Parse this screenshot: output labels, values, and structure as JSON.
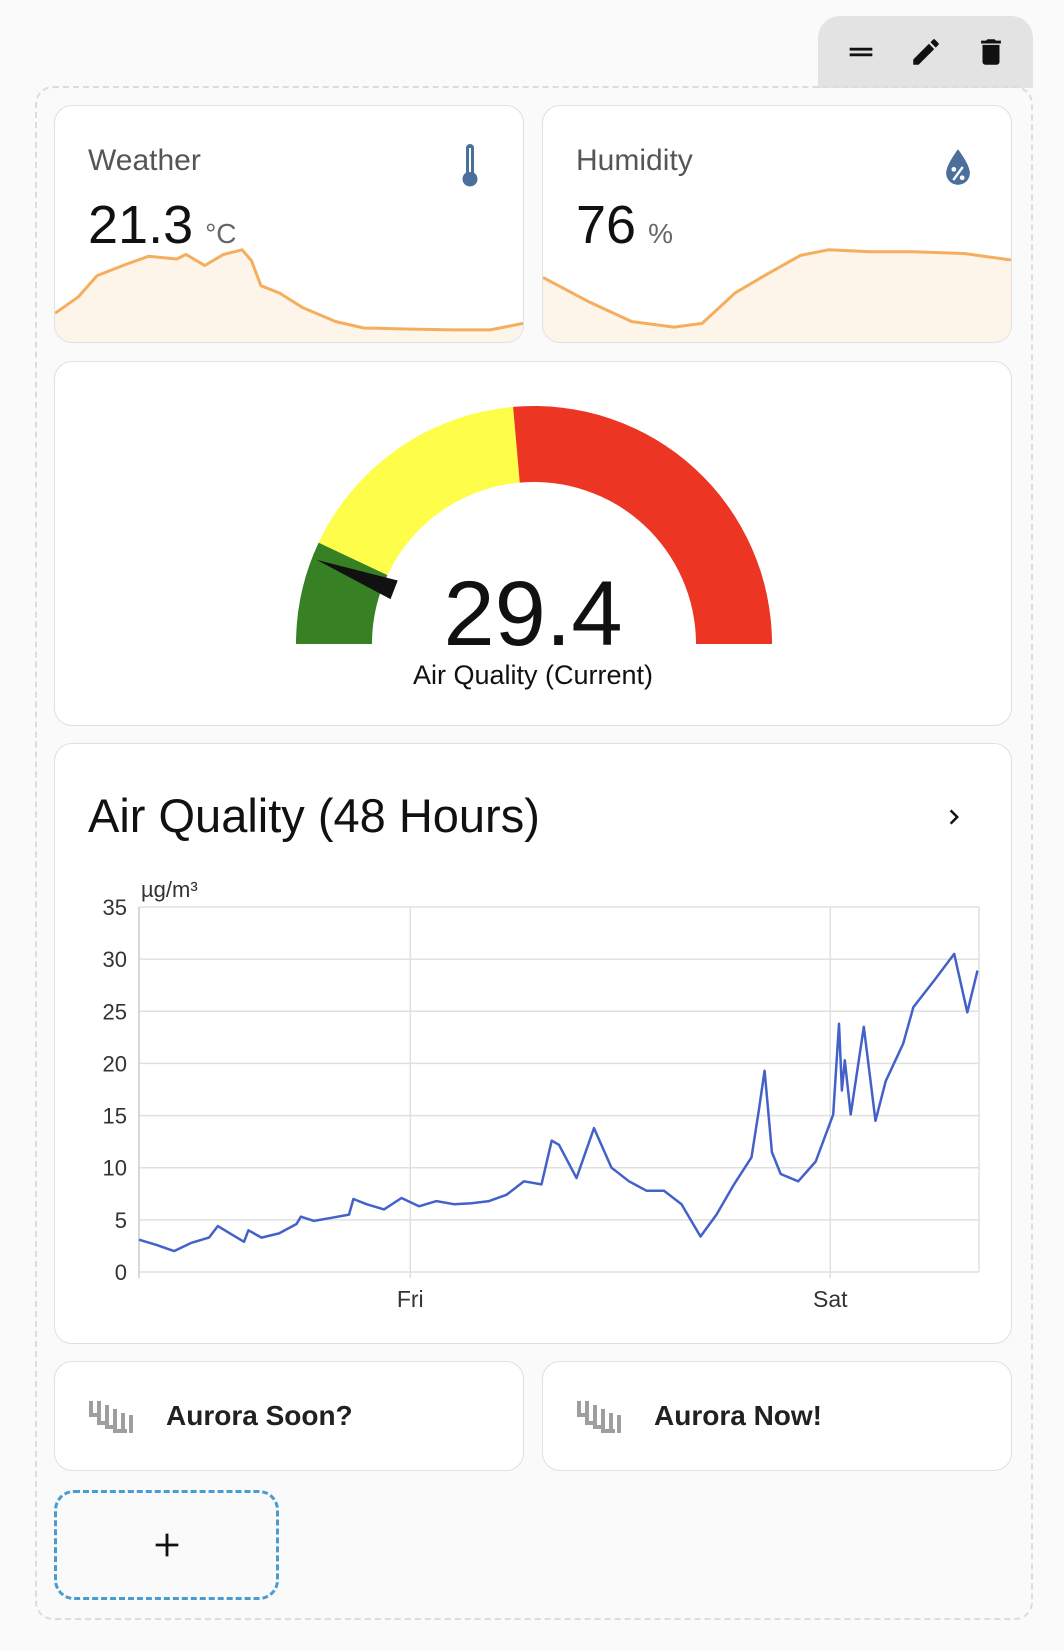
{
  "toolbar": {
    "icons": [
      "drag-handle-icon",
      "pencil-icon",
      "trash-icon"
    ]
  },
  "weather": {
    "title": "Weather",
    "value": "21.3",
    "unit": "°C",
    "icon": "thermometer-icon",
    "icon_color": "#4a6f9a",
    "history_level_pct": [
      [
        0,
        29
      ],
      [
        0.05,
        47
      ],
      [
        0.09,
        70
      ],
      [
        0.15,
        82
      ],
      [
        0.2,
        91
      ],
      [
        0.26,
        88
      ],
      [
        0.28,
        93
      ],
      [
        0.32,
        81
      ],
      [
        0.36,
        93
      ],
      [
        0.4,
        98
      ],
      [
        0.42,
        86
      ],
      [
        0.44,
        59
      ],
      [
        0.48,
        51
      ],
      [
        0.53,
        35
      ],
      [
        0.6,
        20
      ],
      [
        0.66,
        13
      ],
      [
        0.75,
        12
      ],
      [
        0.85,
        11
      ],
      [
        0.93,
        11
      ],
      [
        1,
        18
      ]
    ]
  },
  "humidity": {
    "title": "Humidity",
    "value": "76",
    "unit": "%",
    "icon": "water-percent-icon",
    "icon_color": "#4a6f9a",
    "history_level_pct": [
      [
        0,
        68
      ],
      [
        0.1,
        41
      ],
      [
        0.19,
        20
      ],
      [
        0.28,
        14
      ],
      [
        0.34,
        18
      ],
      [
        0.41,
        51
      ],
      [
        0.48,
        72
      ],
      [
        0.55,
        92
      ],
      [
        0.61,
        98
      ],
      [
        0.7,
        96
      ],
      [
        0.79,
        96
      ],
      [
        0.9,
        94
      ],
      [
        1,
        87
      ]
    ]
  },
  "spark_colors": {
    "line": "#f4ae5e",
    "fill": "#fdf5ea"
  },
  "gauge": {
    "value": "29.4",
    "label": "Air Quality (Current)",
    "min": 0,
    "max": 250,
    "segments": [
      {
        "from": 0,
        "color": "#388024"
      },
      {
        "from": 35,
        "color": "#fdfd4a"
      },
      {
        "from": 118,
        "color": "#ec3523"
      }
    ]
  },
  "chart_card": {
    "title": "Air Quality (48 Hours)",
    "more_icon": "chevron-right-icon"
  },
  "chart_data": {
    "type": "line",
    "ylabel": "µg/m³",
    "ylim": [
      0,
      35
    ],
    "yticks": [
      "0",
      "5",
      "10",
      "15",
      "20",
      "25",
      "30",
      "35"
    ],
    "xlim": [
      "Thu 08:30",
      "Sat 08:30"
    ],
    "xticks": [
      {
        "at": "Fri 00:00",
        "label": "Fri"
      },
      {
        "at": "Sat 00:00",
        "label": "Sat"
      }
    ],
    "grid": true,
    "color": "#4361c9",
    "series": [
      {
        "points": [
          [
            "Thu 08:30",
            3.1
          ],
          [
            "Thu 09:30",
            2.6
          ],
          [
            "Thu 10:30",
            2.0
          ],
          [
            "Thu 11:30",
            2.8
          ],
          [
            "Thu 12:30",
            3.3
          ],
          [
            "Thu 13:00",
            4.4
          ],
          [
            "Thu 13:30",
            3.9
          ],
          [
            "Thu 14:30",
            2.9
          ],
          [
            "Thu 14:45",
            4.0
          ],
          [
            "Thu 15:30",
            3.3
          ],
          [
            "Thu 16:30",
            3.7
          ],
          [
            "Thu 17:30",
            4.6
          ],
          [
            "Thu 17:45",
            5.3
          ],
          [
            "Thu 18:30",
            4.9
          ],
          [
            "Thu 19:30",
            5.2
          ],
          [
            "Thu 20:30",
            5.5
          ],
          [
            "Thu 20:45",
            7.0
          ],
          [
            "Thu 21:30",
            6.5
          ],
          [
            "Thu 22:30",
            6.0
          ],
          [
            "Thu 23:30",
            7.1
          ],
          [
            "Fri 00:30",
            6.3
          ],
          [
            "Fri 01:30",
            6.8
          ],
          [
            "Fri 02:30",
            6.5
          ],
          [
            "Fri 03:30",
            6.6
          ],
          [
            "Fri 04:30",
            6.8
          ],
          [
            "Fri 05:30",
            7.4
          ],
          [
            "Fri 06:30",
            8.7
          ],
          [
            "Fri 07:30",
            8.4
          ],
          [
            "Fri 08:05",
            12.6
          ],
          [
            "Fri 08:30",
            12.2
          ],
          [
            "Fri 09:30",
            9.0
          ],
          [
            "Fri 10:30",
            13.8
          ],
          [
            "Fri 11:30",
            10.0
          ],
          [
            "Fri 12:30",
            8.7
          ],
          [
            "Fri 13:30",
            7.8
          ],
          [
            "Fri 14:30",
            7.8
          ],
          [
            "Fri 15:30",
            6.5
          ],
          [
            "Fri 16:35",
            3.4
          ],
          [
            "Fri 17:30",
            5.5
          ],
          [
            "Fri 18:30",
            8.4
          ],
          [
            "Fri 19:30",
            11.0
          ],
          [
            "Fri 19:55",
            15.5
          ],
          [
            "Fri 20:15",
            19.3
          ],
          [
            "Fri 20:40",
            11.5
          ],
          [
            "Fri 21:10",
            9.4
          ],
          [
            "Fri 22:10",
            8.7
          ],
          [
            "Fri 23:10",
            10.6
          ],
          [
            "Sat 00:10",
            15.1
          ],
          [
            "Sat 00:30",
            23.8
          ],
          [
            "Sat 00:40",
            17.4
          ],
          [
            "Sat 00:50",
            20.3
          ],
          [
            "Sat 01:10",
            15.1
          ],
          [
            "Sat 01:55",
            23.5
          ],
          [
            "Sat 02:35",
            14.5
          ],
          [
            "Sat 03:10",
            18.3
          ],
          [
            "Sat 04:10",
            21.9
          ],
          [
            "Sat 04:45",
            25.4
          ],
          [
            "Sat 05:55",
            27.9
          ],
          [
            "Sat 07:05",
            30.5
          ],
          [
            "Sat 07:50",
            24.9
          ],
          [
            "Sat 08:25",
            28.9
          ]
        ]
      }
    ]
  },
  "buttons": [
    {
      "label": "Aurora Soon?",
      "icon": "aurora-icon"
    },
    {
      "label": "Aurora Now!",
      "icon": "aurora-icon"
    }
  ],
  "add_button": {
    "icon": "plus-icon"
  }
}
